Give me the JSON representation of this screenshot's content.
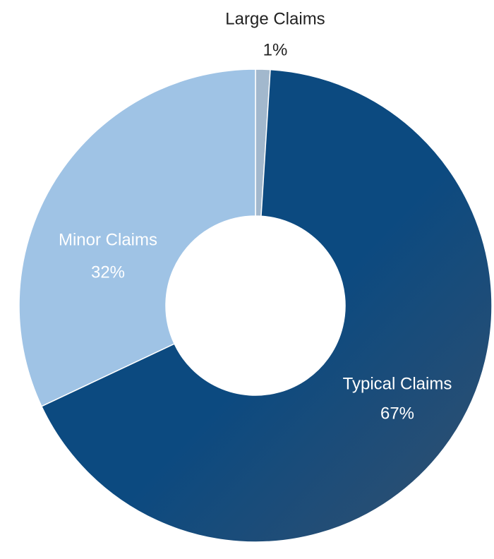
{
  "chart_data": {
    "type": "donut",
    "categories": [
      "Large Claims",
      "Typical Claims",
      "Minor Claims"
    ],
    "values": [
      1,
      67,
      32
    ],
    "value_labels": [
      "1%",
      "67%",
      "32%"
    ],
    "colors": [
      "#a2b8cd",
      "#0c4a80",
      "#9fc3e5"
    ]
  }
}
